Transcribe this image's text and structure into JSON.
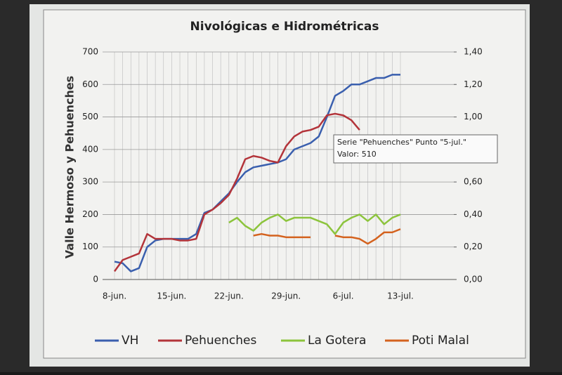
{
  "chart_data": {
    "type": "line",
    "title": "Nivológicas e Hidrométricas",
    "y_label": "Valle Hermoso y Pehuenches",
    "categories": [
      "8-jun.",
      null,
      null,
      null,
      null,
      null,
      null,
      "15-jun.",
      null,
      null,
      null,
      null,
      null,
      null,
      "22-jun.",
      null,
      null,
      null,
      null,
      null,
      null,
      "29-jun.",
      null,
      null,
      null,
      null,
      null,
      null,
      "6-jul.",
      null,
      null,
      null,
      null,
      null,
      null,
      "13-jul."
    ],
    "ylim": [
      0,
      700
    ],
    "yticks": [
      0,
      100,
      200,
      300,
      400,
      500,
      600,
      700
    ],
    "y2lim": [
      0,
      1.4
    ],
    "y2ticks": [
      {
        "value": 0,
        "label": "0,00"
      },
      {
        "value": 0.2,
        "label": "0,20"
      },
      {
        "value": 0.4,
        "label": "0,40"
      },
      {
        "value": 0.6,
        "label": "0,60"
      },
      {
        "value": 0.8,
        "label": "0,80"
      },
      {
        "value": 1.0,
        "label": "1,00"
      },
      {
        "value": 1.2,
        "label": "1,20"
      },
      {
        "value": 1.4,
        "label": "1,40"
      }
    ],
    "grid": true,
    "legend": "bottom",
    "series": [
      {
        "name": "VH",
        "color": "#3a5fae",
        "values": [
          55,
          50,
          25,
          35,
          100,
          120,
          125,
          125,
          125,
          125,
          140,
          205,
          215,
          240,
          265,
          300,
          330,
          345,
          350,
          355,
          360,
          370,
          400,
          410,
          420,
          440,
          500,
          565,
          580,
          600,
          600,
          610,
          620,
          620,
          630,
          630
        ]
      },
      {
        "name": "Pehuenches",
        "color": "#b3343a",
        "values": [
          25,
          60,
          70,
          80,
          140,
          125,
          125,
          125,
          120,
          120,
          125,
          200,
          215,
          235,
          260,
          310,
          370,
          380,
          375,
          365,
          360,
          410,
          440,
          455,
          460,
          470,
          505,
          510,
          505,
          490,
          460,
          null,
          null,
          null,
          null,
          null
        ]
      },
      {
        "name": "La Gotera",
        "color": "#8cc43c",
        "axis": "y2",
        "values": [
          null,
          null,
          null,
          null,
          null,
          null,
          null,
          null,
          null,
          null,
          null,
          null,
          null,
          null,
          0.35,
          0.38,
          0.33,
          0.3,
          0.35,
          0.38,
          0.4,
          0.36,
          0.38,
          0.38,
          0.38,
          0.36,
          0.34,
          0.28,
          0.35,
          0.38,
          0.4,
          0.36,
          0.4,
          0.34,
          0.38,
          0.4
        ]
      },
      {
        "name": "Poti Malal",
        "color": "#d4621e",
        "axis": "y2",
        "values": [
          null,
          null,
          null,
          null,
          null,
          null,
          null,
          null,
          null,
          null,
          null,
          null,
          null,
          null,
          null,
          null,
          null,
          0.27,
          0.28,
          0.27,
          0.27,
          0.26,
          0.26,
          0.26,
          0.26,
          null,
          null,
          0.27,
          0.26,
          0.26,
          0.25,
          0.22,
          0.25,
          0.29,
          0.29,
          0.31
        ]
      }
    ],
    "tooltip": [
      "Serie \"Pehuenches\" Punto \"5-jul.\"",
      "Valor: 510"
    ]
  }
}
